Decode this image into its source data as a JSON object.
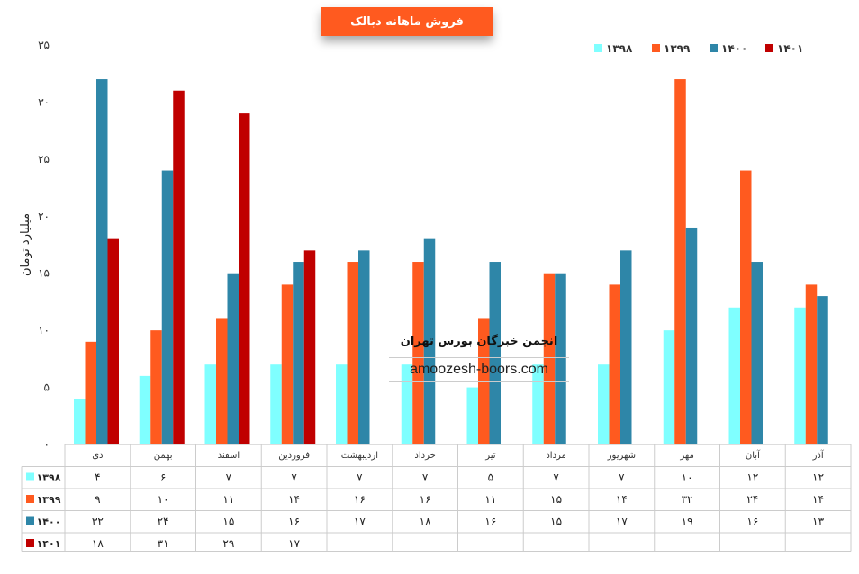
{
  "chart_data": {
    "type": "bar",
    "title": "فروش ماهانه دبالک",
    "ylabel": "میلیارد تومان",
    "ylim": [
      0,
      35
    ],
    "yticks": [
      "۰",
      "۵",
      "۱۰",
      "۱۵",
      "۲۰",
      "۲۵",
      "۳۰",
      "۳۵"
    ],
    "categories": [
      "دی",
      "بهمن",
      "اسفند",
      "فروردین",
      "اردیبهشت",
      "خرداد",
      "تیر",
      "مرداد",
      "شهریور",
      "مهر",
      "آبان",
      "آذر"
    ],
    "series": [
      {
        "name": "۱۳۹۸",
        "color": "#7FFFFF",
        "values": [
          4,
          6,
          7,
          7,
          7,
          7,
          5,
          7,
          7,
          10,
          12,
          12
        ],
        "labels": [
          "۴",
          "۶",
          "۷",
          "۷",
          "۷",
          "۷",
          "۵",
          "۷",
          "۷",
          "۱۰",
          "۱۲",
          "۱۲"
        ]
      },
      {
        "name": "۱۳۹۹",
        "color": "#FF5A1F",
        "values": [
          9,
          10,
          11,
          14,
          16,
          16,
          11,
          15,
          14,
          32,
          24,
          14
        ],
        "labels": [
          "۹",
          "۱۰",
          "۱۱",
          "۱۴",
          "۱۶",
          "۱۶",
          "۱۱",
          "۱۵",
          "۱۴",
          "۳۲",
          "۲۴",
          "۱۴"
        ]
      },
      {
        "name": "۱۴۰۰",
        "color": "#2E86A8",
        "values": [
          32,
          24,
          15,
          16,
          17,
          18,
          16,
          15,
          17,
          19,
          16,
          13
        ],
        "labels": [
          "۳۲",
          "۲۴",
          "۱۵",
          "۱۶",
          "۱۷",
          "۱۸",
          "۱۶",
          "۱۵",
          "۱۷",
          "۱۹",
          "۱۶",
          "۱۳"
        ]
      },
      {
        "name": "۱۴۰۱",
        "color": "#C00000",
        "values": [
          18,
          31,
          29,
          17,
          null,
          null,
          null,
          null,
          null,
          null,
          null,
          null
        ],
        "labels": [
          "۱۸",
          "۳۱",
          "۲۹",
          "۱۷",
          "",
          "",
          "",
          "",
          "",
          "",
          "",
          ""
        ]
      }
    ],
    "legend": "top-right",
    "grid": false
  },
  "watermark": {
    "title": "انجمن خبرگان بورس تهران",
    "url": "amoozesh-boors.com"
  }
}
